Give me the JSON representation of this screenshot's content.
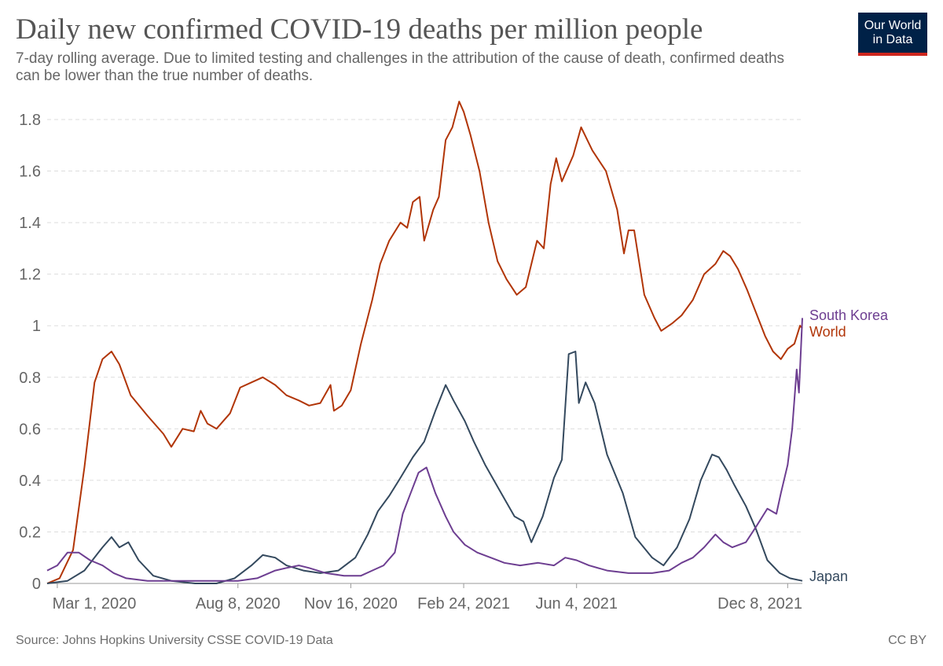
{
  "title": "Daily new confirmed COVID-19 deaths per million people",
  "subtitle": "7-day rolling average. Due to limited testing and challenges in the attribution of the cause of death, confirmed deaths can be lower than the true number of deaths.",
  "logo": {
    "line1": "Our World",
    "line2": "in Data",
    "bg_color": "#002147",
    "accent_color": "#ce261e"
  },
  "source": "Source: Johns Hopkins University CSSE COVID-19 Data",
  "license": "CC BY",
  "chart_data": {
    "type": "line",
    "xlabel": "",
    "ylabel": "",
    "ylim": [
      0,
      1.8
    ],
    "xlim": [
      "2020-02-21",
      "2021-12-21"
    ],
    "yticks": [
      0,
      0.2,
      0.4,
      0.6,
      0.8,
      1,
      1.2,
      1.4,
      1.6,
      1.8
    ],
    "ytick_labels": [
      "0",
      "0.2",
      "0.4",
      "0.6",
      "0.8",
      "1",
      "1.2",
      "1.4",
      "1.6",
      "1.8"
    ],
    "xticks": [
      "2020-03-01",
      "2020-08-08",
      "2020-11-16",
      "2021-02-24",
      "2021-06-04",
      "2021-12-08"
    ],
    "xtick_labels": [
      "Mar 1, 2020",
      "Aug 8, 2020",
      "Nov 16, 2020",
      "Feb 24, 2021",
      "Jun 4, 2021",
      "Dec 8, 2021"
    ],
    "grid": "horizontal dashed",
    "series": [
      {
        "name": "World",
        "color": "#b13507",
        "points": [
          [
            "2020-02-21",
            0.0
          ],
          [
            "2020-03-03",
            0.02
          ],
          [
            "2020-03-15",
            0.13
          ],
          [
            "2020-03-25",
            0.45
          ],
          [
            "2020-04-03",
            0.78
          ],
          [
            "2020-04-10",
            0.87
          ],
          [
            "2020-04-18",
            0.9
          ],
          [
            "2020-04-25",
            0.85
          ],
          [
            "2020-05-05",
            0.73
          ],
          [
            "2020-05-20",
            0.65
          ],
          [
            "2020-06-03",
            0.58
          ],
          [
            "2020-06-10",
            0.53
          ],
          [
            "2020-06-20",
            0.6
          ],
          [
            "2020-06-30",
            0.59
          ],
          [
            "2020-07-06",
            0.67
          ],
          [
            "2020-07-12",
            0.62
          ],
          [
            "2020-07-20",
            0.6
          ],
          [
            "2020-08-01",
            0.66
          ],
          [
            "2020-08-10",
            0.76
          ],
          [
            "2020-08-20",
            0.78
          ],
          [
            "2020-08-30",
            0.8
          ],
          [
            "2020-09-10",
            0.77
          ],
          [
            "2020-09-20",
            0.73
          ],
          [
            "2020-10-01",
            0.71
          ],
          [
            "2020-10-10",
            0.69
          ],
          [
            "2020-10-20",
            0.7
          ],
          [
            "2020-10-29",
            0.77
          ],
          [
            "2020-11-01",
            0.67
          ],
          [
            "2020-11-08",
            0.69
          ],
          [
            "2020-11-16",
            0.75
          ],
          [
            "2020-11-25",
            0.93
          ],
          [
            "2020-12-05",
            1.1
          ],
          [
            "2020-12-12",
            1.24
          ],
          [
            "2020-12-20",
            1.33
          ],
          [
            "2020-12-30",
            1.4
          ],
          [
            "2021-01-05",
            1.38
          ],
          [
            "2021-01-10",
            1.48
          ],
          [
            "2021-01-16",
            1.5
          ],
          [
            "2021-01-20",
            1.33
          ],
          [
            "2021-01-28",
            1.45
          ],
          [
            "2021-02-02",
            1.5
          ],
          [
            "2021-02-08",
            1.72
          ],
          [
            "2021-02-14",
            1.77
          ],
          [
            "2021-02-20",
            1.87
          ],
          [
            "2021-02-24",
            1.83
          ],
          [
            "2021-03-02",
            1.74
          ],
          [
            "2021-03-10",
            1.6
          ],
          [
            "2021-03-18",
            1.4
          ],
          [
            "2021-03-26",
            1.25
          ],
          [
            "2021-04-03",
            1.18
          ],
          [
            "2021-04-12",
            1.12
          ],
          [
            "2021-04-20",
            1.15
          ],
          [
            "2021-04-30",
            1.33
          ],
          [
            "2021-05-06",
            1.3
          ],
          [
            "2021-05-12",
            1.55
          ],
          [
            "2021-05-17",
            1.65
          ],
          [
            "2021-05-22",
            1.56
          ],
          [
            "2021-06-01",
            1.66
          ],
          [
            "2021-06-08",
            1.77
          ],
          [
            "2021-06-18",
            1.68
          ],
          [
            "2021-06-30",
            1.6
          ],
          [
            "2021-07-10",
            1.45
          ],
          [
            "2021-07-16",
            1.28
          ],
          [
            "2021-07-20",
            1.37
          ],
          [
            "2021-07-25",
            1.37
          ],
          [
            "2021-08-03",
            1.12
          ],
          [
            "2021-08-12",
            1.03
          ],
          [
            "2021-08-18",
            0.98
          ],
          [
            "2021-08-28",
            1.01
          ],
          [
            "2021-09-05",
            1.04
          ],
          [
            "2021-09-15",
            1.1
          ],
          [
            "2021-09-25",
            1.2
          ],
          [
            "2021-10-05",
            1.24
          ],
          [
            "2021-10-12",
            1.29
          ],
          [
            "2021-10-18",
            1.27
          ],
          [
            "2021-10-25",
            1.22
          ],
          [
            "2021-11-02",
            1.14
          ],
          [
            "2021-11-10",
            1.05
          ],
          [
            "2021-11-18",
            0.96
          ],
          [
            "2021-11-25",
            0.9
          ],
          [
            "2021-12-02",
            0.87
          ],
          [
            "2021-12-08",
            0.91
          ],
          [
            "2021-12-14",
            0.93
          ],
          [
            "2021-12-19",
            1.0
          ],
          [
            "2021-12-21",
            0.99
          ]
        ]
      },
      {
        "name": "Japan",
        "color": "#34495e",
        "points": [
          [
            "2020-02-21",
            0.0
          ],
          [
            "2020-03-10",
            0.01
          ],
          [
            "2020-03-25",
            0.05
          ],
          [
            "2020-04-10",
            0.14
          ],
          [
            "2020-04-18",
            0.18
          ],
          [
            "2020-04-25",
            0.14
          ],
          [
            "2020-05-03",
            0.16
          ],
          [
            "2020-05-12",
            0.09
          ],
          [
            "2020-05-25",
            0.03
          ],
          [
            "2020-06-10",
            0.01
          ],
          [
            "2020-07-01",
            0.0
          ],
          [
            "2020-07-20",
            0.0
          ],
          [
            "2020-08-05",
            0.02
          ],
          [
            "2020-08-20",
            0.07
          ],
          [
            "2020-08-30",
            0.11
          ],
          [
            "2020-09-10",
            0.1
          ],
          [
            "2020-09-20",
            0.07
          ],
          [
            "2020-10-05",
            0.05
          ],
          [
            "2020-10-20",
            0.04
          ],
          [
            "2020-11-05",
            0.05
          ],
          [
            "2020-11-20",
            0.1
          ],
          [
            "2020-12-01",
            0.19
          ],
          [
            "2020-12-10",
            0.28
          ],
          [
            "2020-12-20",
            0.34
          ],
          [
            "2020-12-30",
            0.41
          ],
          [
            "2021-01-10",
            0.49
          ],
          [
            "2021-01-20",
            0.55
          ],
          [
            "2021-01-30",
            0.67
          ],
          [
            "2021-02-08",
            0.77
          ],
          [
            "2021-02-15",
            0.71
          ],
          [
            "2021-02-25",
            0.63
          ],
          [
            "2021-03-05",
            0.55
          ],
          [
            "2021-03-15",
            0.46
          ],
          [
            "2021-03-28",
            0.36
          ],
          [
            "2021-04-10",
            0.26
          ],
          [
            "2021-04-18",
            0.24
          ],
          [
            "2021-04-25",
            0.16
          ],
          [
            "2021-05-05",
            0.26
          ],
          [
            "2021-05-15",
            0.41
          ],
          [
            "2021-05-22",
            0.48
          ],
          [
            "2021-05-28",
            0.89
          ],
          [
            "2021-06-03",
            0.9
          ],
          [
            "2021-06-06",
            0.7
          ],
          [
            "2021-06-12",
            0.78
          ],
          [
            "2021-06-20",
            0.7
          ],
          [
            "2021-07-01",
            0.5
          ],
          [
            "2021-07-15",
            0.35
          ],
          [
            "2021-07-26",
            0.18
          ],
          [
            "2021-08-10",
            0.1
          ],
          [
            "2021-08-20",
            0.07
          ],
          [
            "2021-09-01",
            0.14
          ],
          [
            "2021-09-12",
            0.25
          ],
          [
            "2021-09-22",
            0.4
          ],
          [
            "2021-10-02",
            0.5
          ],
          [
            "2021-10-08",
            0.49
          ],
          [
            "2021-10-15",
            0.44
          ],
          [
            "2021-10-22",
            0.38
          ],
          [
            "2021-11-01",
            0.3
          ],
          [
            "2021-11-10",
            0.21
          ],
          [
            "2021-11-20",
            0.09
          ],
          [
            "2021-12-01",
            0.04
          ],
          [
            "2021-12-10",
            0.02
          ],
          [
            "2021-12-21",
            0.01
          ]
        ]
      },
      {
        "name": "South Korea",
        "color": "#6d3e91",
        "points": [
          [
            "2020-02-21",
            0.05
          ],
          [
            "2020-03-01",
            0.07
          ],
          [
            "2020-03-10",
            0.12
          ],
          [
            "2020-03-20",
            0.12
          ],
          [
            "2020-03-30",
            0.09
          ],
          [
            "2020-04-10",
            0.07
          ],
          [
            "2020-04-20",
            0.04
          ],
          [
            "2020-05-01",
            0.02
          ],
          [
            "2020-05-20",
            0.01
          ],
          [
            "2020-06-15",
            0.01
          ],
          [
            "2020-07-15",
            0.01
          ],
          [
            "2020-08-08",
            0.01
          ],
          [
            "2020-08-25",
            0.02
          ],
          [
            "2020-09-10",
            0.05
          ],
          [
            "2020-09-20",
            0.06
          ],
          [
            "2020-10-01",
            0.07
          ],
          [
            "2020-10-10",
            0.06
          ],
          [
            "2020-10-25",
            0.04
          ],
          [
            "2020-11-10",
            0.03
          ],
          [
            "2020-11-25",
            0.03
          ],
          [
            "2020-12-05",
            0.05
          ],
          [
            "2020-12-15",
            0.07
          ],
          [
            "2020-12-25",
            0.12
          ],
          [
            "2021-01-01",
            0.27
          ],
          [
            "2021-01-08",
            0.35
          ],
          [
            "2021-01-15",
            0.43
          ],
          [
            "2021-01-22",
            0.45
          ],
          [
            "2021-01-30",
            0.35
          ],
          [
            "2021-02-08",
            0.26
          ],
          [
            "2021-02-15",
            0.2
          ],
          [
            "2021-02-25",
            0.15
          ],
          [
            "2021-03-08",
            0.12
          ],
          [
            "2021-03-20",
            0.1
          ],
          [
            "2021-04-01",
            0.08
          ],
          [
            "2021-04-15",
            0.07
          ],
          [
            "2021-05-01",
            0.08
          ],
          [
            "2021-05-15",
            0.07
          ],
          [
            "2021-05-25",
            0.1
          ],
          [
            "2021-06-04",
            0.09
          ],
          [
            "2021-06-15",
            0.07
          ],
          [
            "2021-07-01",
            0.05
          ],
          [
            "2021-07-20",
            0.04
          ],
          [
            "2021-08-10",
            0.04
          ],
          [
            "2021-08-25",
            0.05
          ],
          [
            "2021-09-05",
            0.08
          ],
          [
            "2021-09-15",
            0.1
          ],
          [
            "2021-09-25",
            0.14
          ],
          [
            "2021-10-05",
            0.19
          ],
          [
            "2021-10-12",
            0.16
          ],
          [
            "2021-10-20",
            0.14
          ],
          [
            "2021-11-01",
            0.16
          ],
          [
            "2021-11-10",
            0.22
          ],
          [
            "2021-11-20",
            0.29
          ],
          [
            "2021-11-28",
            0.27
          ],
          [
            "2021-12-02",
            0.35
          ],
          [
            "2021-12-08",
            0.46
          ],
          [
            "2021-12-12",
            0.6
          ],
          [
            "2021-12-16",
            0.83
          ],
          [
            "2021-12-18",
            0.74
          ],
          [
            "2021-12-21",
            1.03
          ]
        ]
      }
    ]
  }
}
